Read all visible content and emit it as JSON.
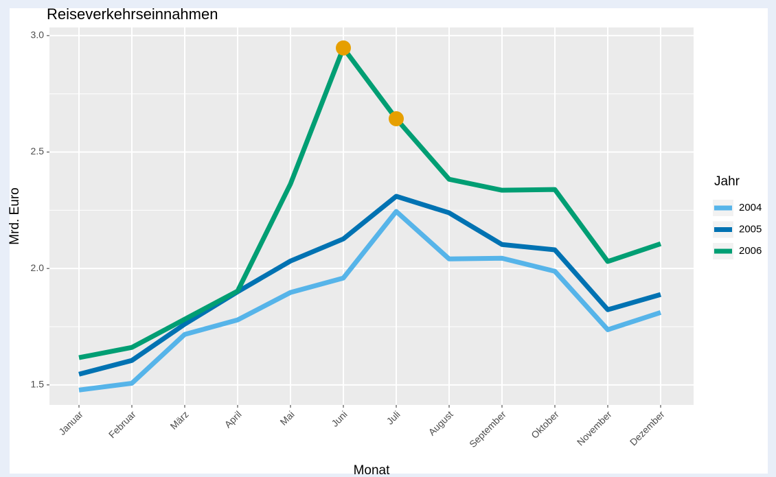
{
  "chart_data": {
    "type": "line",
    "title": "Reiseverkehrseinnahmen",
    "x_label": "Monat",
    "y_label": "Mrd. Euro",
    "legend_title": "Jahr",
    "legend_position": "right",
    "categories": [
      "Januar",
      "Februar",
      "März",
      "April",
      "Mai",
      "Juni",
      "Juli",
      "August",
      "September",
      "Oktober",
      "November",
      "Dezember"
    ],
    "series": [
      {
        "name": "2004",
        "color": "#56b4e9",
        "values": [
          1.478,
          1.507,
          1.717,
          1.779,
          1.897,
          1.959,
          2.245,
          2.041,
          2.044,
          1.988,
          1.737,
          1.811
        ]
      },
      {
        "name": "2005",
        "color": "#0072b2",
        "values": [
          1.546,
          1.605,
          1.761,
          1.9,
          2.032,
          2.127,
          2.31,
          2.239,
          2.103,
          2.08,
          1.823,
          1.888
        ]
      },
      {
        "name": "2006",
        "color": "#009e73",
        "values": [
          1.617,
          1.661,
          1.782,
          1.903,
          2.363,
          2.947,
          2.643,
          2.383,
          2.336,
          2.339,
          2.03,
          2.106
        ]
      }
    ],
    "highlight": {
      "series": 2,
      "indices": [
        5,
        6
      ],
      "color": "#e69f00"
    },
    "ylim": [
      1.414,
      3.035
    ],
    "yticks": [
      {
        "value": 1.5,
        "label": "1.5"
      },
      {
        "value": 2,
        "label": "2.0"
      },
      {
        "value": 2.5,
        "label": "2.5"
      },
      {
        "value": 3,
        "label": "3.0"
      }
    ],
    "grid": true
  }
}
